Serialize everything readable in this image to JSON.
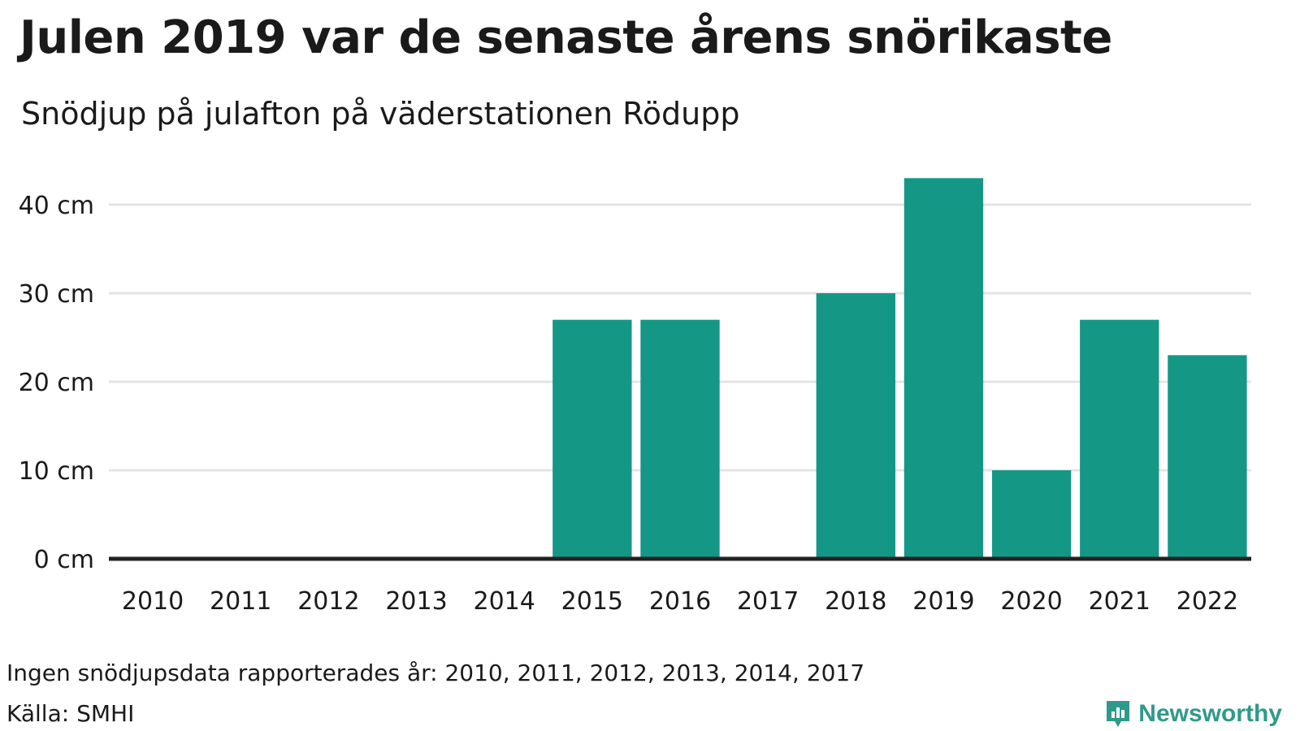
{
  "title": "Julen 2019 var de senaste årens snörikaste",
  "subtitle": "Snödjup på julafton på väderstationen Rödupp",
  "note": "Ingen snödjupsdata rapporterades år: 2010, 2011, 2012, 2013, 2014, 2017",
  "source": "Källa: SMHI",
  "brand": {
    "name": "Newsworthy",
    "icon": "bar-chart-logo-icon",
    "color": "#2e9a8a"
  },
  "colors": {
    "bar": "#159786",
    "grid": "#e4e4e4",
    "baseline": "#222222",
    "text": "#1a1a1a"
  },
  "chart_data": {
    "type": "bar",
    "categories": [
      "2010",
      "2011",
      "2012",
      "2013",
      "2014",
      "2015",
      "2016",
      "2017",
      "2018",
      "2019",
      "2020",
      "2021",
      "2022"
    ],
    "values": [
      null,
      null,
      null,
      null,
      null,
      27,
      27,
      null,
      30,
      43,
      10,
      27,
      23
    ],
    "title": "Julen 2019 var de senaste årens snörikaste",
    "subtitle": "Snödjup på julafton på väderstationen Rödupp",
    "xlabel": "",
    "ylabel": "",
    "ylim": [
      0,
      45
    ],
    "yticks": [
      0,
      10,
      20,
      30,
      40
    ],
    "ytick_labels": [
      "0 cm",
      "10 cm",
      "20 cm",
      "30 cm",
      "40 cm"
    ],
    "grid": true,
    "legend": "none"
  }
}
